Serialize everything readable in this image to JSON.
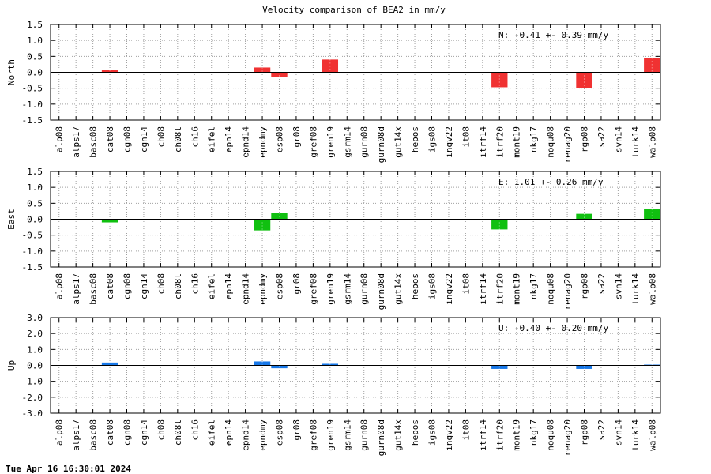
{
  "chart_data": {
    "type": "bar",
    "title": "Velocity comparison of BEA2 in mm/y",
    "categories": [
      "alp08",
      "alps17",
      "basc08",
      "cat08",
      "cgn08",
      "cgn14",
      "ch08",
      "ch08l",
      "ch16",
      "eifel",
      "epn14",
      "epnd14",
      "epndmy",
      "esp08",
      "gr08",
      "gref08",
      "gren19",
      "gsrm14",
      "gurn08",
      "gurn08d",
      "gut14x",
      "hepos",
      "igs08",
      "ingv22",
      "it08",
      "itrf14",
      "itrf20",
      "mont19",
      "nkg17",
      "noqu08",
      "renag20",
      "rgp08",
      "sa22",
      "svn14",
      "turk14",
      "walp08"
    ],
    "panels": [
      {
        "name": "North",
        "ylabel": "North",
        "color": "#f03232",
        "ylim": [
          -1.5,
          1.5
        ],
        "yticks": [
          -1.5,
          -1.0,
          -0.5,
          0.0,
          0.5,
          1.0,
          1.5
        ],
        "tick_labels": [
          "-1.5",
          "-1.0",
          "-0.5",
          "0.0",
          "0.5",
          "1.0",
          "1.5"
        ],
        "annotation": "N:  -0.41 +-  0.39 mm/y",
        "values": [
          0,
          0,
          0,
          0.07,
          0,
          0,
          0,
          0,
          0,
          0,
          0,
          0,
          0.15,
          -0.15,
          0,
          0,
          0.4,
          0,
          0,
          0,
          0,
          0,
          0,
          0,
          0,
          0,
          -0.47,
          0,
          0,
          0,
          0,
          -0.5,
          0,
          0,
          0,
          0.45
        ]
      },
      {
        "name": "East",
        "ylabel": "East",
        "color": "#10c010",
        "ylim": [
          -1.5,
          1.5
        ],
        "yticks": [
          -1.5,
          -1.0,
          -0.5,
          0.0,
          0.5,
          1.0,
          1.5
        ],
        "tick_labels": [
          "-1.5",
          "-1.0",
          "-0.5",
          "0.0",
          "0.5",
          "1.0",
          "1.5"
        ],
        "annotation": "E:   1.01 +-  0.26 mm/y",
        "values": [
          0,
          0,
          0,
          -0.1,
          0,
          0,
          0,
          0,
          0,
          0,
          0,
          0,
          -0.35,
          0.2,
          0,
          0,
          -0.03,
          0,
          0,
          0,
          0,
          0,
          0,
          0,
          0,
          0,
          -0.32,
          0,
          0,
          0,
          0,
          0.17,
          0,
          0,
          0,
          0.32
        ]
      },
      {
        "name": "Up",
        "ylabel": "Up",
        "color": "#1878e8",
        "ylim": [
          -3.0,
          3.0
        ],
        "yticks": [
          -3.0,
          -2.0,
          -1.0,
          0.0,
          1.0,
          2.0,
          3.0
        ],
        "tick_labels": [
          "-3.0",
          "-2.0",
          "-1.0",
          "0.0",
          "1.0",
          "2.0",
          "3.0"
        ],
        "annotation": "U:  -0.40 +-  0.20 mm/y",
        "values": [
          0,
          0,
          0,
          0.18,
          0,
          0,
          0,
          0,
          0,
          0,
          0,
          0,
          0.25,
          -0.18,
          0,
          0,
          0.1,
          0,
          0,
          0,
          0,
          0,
          0,
          0,
          0,
          0,
          -0.22,
          0,
          0,
          0,
          0,
          -0.22,
          0,
          0,
          0,
          0.05
        ]
      }
    ],
    "grid": true,
    "legend": "none"
  },
  "footer": {
    "timestamp": "Tue Apr 16 16:30:01 2024"
  }
}
